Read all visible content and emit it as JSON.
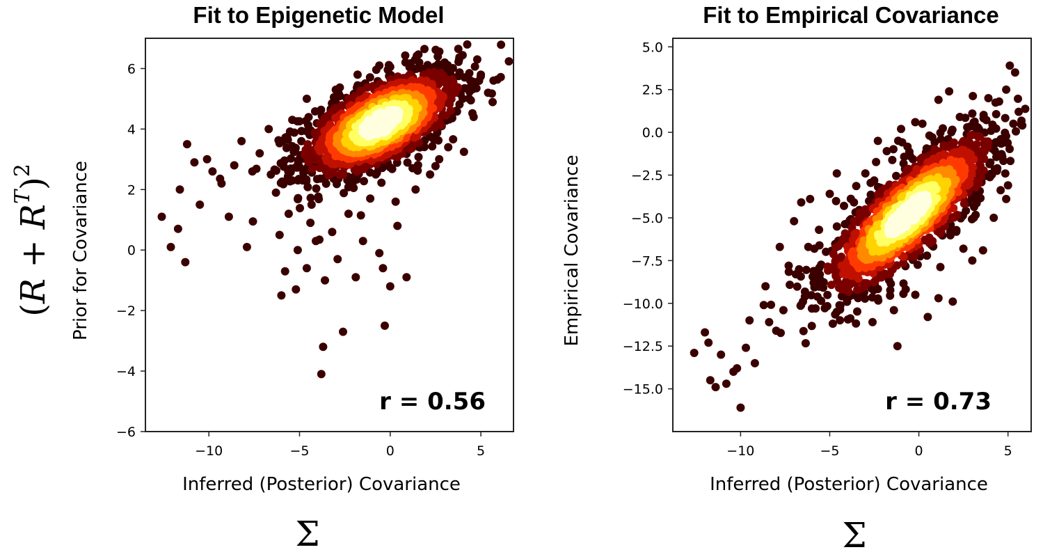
{
  "figure": {
    "left_math": {
      "open": "(",
      "R1": "R",
      "plus": " + ",
      "R2": "R",
      "sup_T": "T",
      "close": ")",
      "sup_2": "2"
    },
    "sigma_symbol": "Σ"
  },
  "chart_data": [
    {
      "type": "scatter",
      "title": "Fit to Epigenetic Model",
      "xlabel": "Inferred (Posterior) Covariance",
      "ylabel": "Prior for Covariance",
      "xlim": [
        -13.5,
        6.8
      ],
      "ylim": [
        -6,
        7
      ],
      "xticks": [
        -10,
        -5,
        0,
        5
      ],
      "xtick_labels": [
        "−10",
        "−5",
        "0",
        "5"
      ],
      "yticks": [
        -6,
        -4,
        -2,
        0,
        2,
        4,
        6
      ],
      "ytick_labels": [
        "−6",
        "−4",
        "−2",
        "0",
        "2",
        "4",
        "6"
      ],
      "annotation": "r = 0.56",
      "colormap": "hot (density)",
      "colors": [
        "#3a0000",
        "#7a0000",
        "#c01000",
        "#ff3a00",
        "#ff8a00",
        "#ffd200",
        "#ffff66",
        "#ffffe0"
      ],
      "density_core": {
        "center": [
          -0.5,
          4.2
        ],
        "sd_x": 2.2,
        "sd_y": 0.9,
        "correlation": 0.6,
        "n_points": 1500
      },
      "outliers": [
        [
          -12.6,
          1.1
        ],
        [
          -12.1,
          0.1
        ],
        [
          -11.3,
          -0.4
        ],
        [
          -11.7,
          0.7
        ],
        [
          -11.6,
          2.0
        ],
        [
          -11.2,
          3.5
        ],
        [
          -10.8,
          2.9
        ],
        [
          -10.5,
          1.5
        ],
        [
          -10.1,
          3.0
        ],
        [
          -9.8,
          2.6
        ],
        [
          -9.3,
          2.2
        ],
        [
          -8.9,
          1.1
        ],
        [
          -8.6,
          2.8
        ],
        [
          -8.2,
          3.6
        ],
        [
          -7.9,
          0.1
        ],
        [
          -7.6,
          2.6
        ],
        [
          -7.2,
          3.2
        ],
        [
          -6.7,
          4.0
        ],
        [
          -6.3,
          1.9
        ],
        [
          -6.1,
          0.5
        ],
        [
          -5.8,
          -0.7
        ],
        [
          -5.6,
          1.2
        ],
        [
          -5.4,
          2.3
        ],
        [
          -5.1,
          0.0
        ],
        [
          -6.0,
          -1.5
        ],
        [
          -5.2,
          -1.3
        ],
        [
          -4.6,
          -0.6
        ],
        [
          -4.4,
          0.9
        ],
        [
          -4.1,
          0.3
        ],
        [
          -3.8,
          -4.1
        ],
        [
          -3.7,
          -3.2
        ],
        [
          -3.6,
          -1.0
        ],
        [
          -3.2,
          0.6
        ],
        [
          -2.6,
          -2.7
        ],
        [
          -2.9,
          -0.3
        ],
        [
          -2.3,
          1.2
        ],
        [
          -1.9,
          -0.9
        ],
        [
          -1.5,
          0.3
        ],
        [
          -1.1,
          1.7
        ],
        [
          -0.6,
          -0.1
        ],
        [
          -0.3,
          -2.5
        ],
        [
          -0.4,
          -0.6
        ],
        [
          0.0,
          -1.2
        ],
        [
          0.4,
          0.8
        ],
        [
          0.9,
          -0.9
        ],
        [
          0.3,
          1.6
        ],
        [
          1.4,
          2.0
        ],
        [
          2.2,
          2.5
        ],
        [
          2.7,
          3.0
        ],
        [
          3.2,
          3.4
        ],
        [
          4.0,
          5.0
        ],
        [
          4.6,
          4.4
        ],
        [
          5.0,
          5.8
        ],
        [
          5.4,
          5.2
        ],
        [
          5.7,
          5.6
        ],
        [
          4.8,
          6.3
        ],
        [
          3.8,
          6.3
        ],
        [
          3.0,
          6.2
        ],
        [
          1.6,
          6.2
        ],
        [
          -0.6,
          6.1
        ],
        [
          -1.8,
          5.8
        ],
        [
          -3.0,
          5.3
        ],
        [
          -4.6,
          5.0
        ],
        [
          -5.4,
          4.3
        ],
        [
          -4.9,
          3.6
        ],
        [
          -4.2,
          2.9
        ]
      ]
    },
    {
      "type": "scatter",
      "title": "Fit to Empirical Covariance",
      "xlabel": "Inferred (Posterior) Covariance",
      "ylabel": "Empirical Covariance",
      "xlim": [
        -13.8,
        6.3
      ],
      "ylim": [
        -17.5,
        5.5
      ],
      "xticks": [
        -10,
        -5,
        0,
        5
      ],
      "xtick_labels": [
        "−10",
        "−5",
        "0",
        "5"
      ],
      "yticks": [
        -15,
        -12.5,
        -10,
        -7.5,
        -5,
        -2.5,
        0,
        2.5,
        5
      ],
      "ytick_labels": [
        "−15.0",
        "−12.5",
        "−10.0",
        "−7.5",
        "−5.0",
        "−2.5",
        "0.0",
        "2.5",
        "5.0"
      ],
      "annotation": "r = 0.73",
      "colormap": "hot (density)",
      "colors": [
        "#3a0000",
        "#7a0000",
        "#c01000",
        "#ff3a00",
        "#ff8a00",
        "#ffd200",
        "#ffff66",
        "#ffffe0"
      ],
      "density_core": {
        "center": [
          -0.6,
          -4.8
        ],
        "sd_x": 2.4,
        "sd_y": 2.4,
        "correlation": 0.8,
        "n_points": 1500
      },
      "outliers": [
        [
          -12.6,
          -12.9
        ],
        [
          -12.0,
          -11.7
        ],
        [
          -11.8,
          -12.3
        ],
        [
          -11.7,
          -14.5
        ],
        [
          -11.4,
          -14.9
        ],
        [
          -11.1,
          -13.0
        ],
        [
          -10.8,
          -14.7
        ],
        [
          -10.4,
          -14.0
        ],
        [
          -10.2,
          -13.8
        ],
        [
          -10.0,
          -16.1
        ],
        [
          -9.7,
          -12.6
        ],
        [
          -9.5,
          -11.0
        ],
        [
          -9.2,
          -13.5
        ],
        [
          -8.7,
          -10.1
        ],
        [
          -8.6,
          -9.0
        ],
        [
          -8.4,
          -11.1
        ],
        [
          -8.0,
          -11.6
        ],
        [
          -7.6,
          -10.4
        ],
        [
          -7.8,
          -6.7
        ],
        [
          -7.3,
          -7.8
        ],
        [
          -7.0,
          -5.2
        ],
        [
          -6.6,
          -4.1
        ],
        [
          -6.1,
          -3.9
        ],
        [
          -5.6,
          -5.7
        ],
        [
          -5.0,
          -3.6
        ],
        [
          -4.6,
          -2.4
        ],
        [
          -4.4,
          -8.9
        ],
        [
          -4.6,
          -10.5
        ],
        [
          -3.9,
          -9.6
        ],
        [
          -3.3,
          -9.5
        ],
        [
          -2.6,
          -11.1
        ],
        [
          -2.3,
          -0.5
        ],
        [
          -1.4,
          -10.4
        ],
        [
          -1.2,
          -12.5
        ],
        [
          -0.2,
          -9.5
        ],
        [
          0.5,
          -10.8
        ],
        [
          1.1,
          -9.7
        ],
        [
          1.9,
          -9.9
        ],
        [
          2.5,
          -6.8
        ],
        [
          3.0,
          -7.5
        ],
        [
          3.6,
          -6.9
        ],
        [
          4.2,
          -5.0
        ],
        [
          5.0,
          -3.1
        ],
        [
          4.9,
          -3.9
        ],
        [
          4.4,
          -2.1
        ],
        [
          4.6,
          -0.4
        ],
        [
          5.3,
          0.5
        ],
        [
          5.6,
          1.2
        ],
        [
          5.8,
          0.4
        ],
        [
          5.1,
          3.9
        ],
        [
          5.4,
          3.5
        ],
        [
          4.9,
          2.5
        ],
        [
          4.5,
          1.8
        ],
        [
          3.9,
          2.0
        ],
        [
          3.0,
          1.1
        ],
        [
          2.3,
          0.9
        ],
        [
          1.7,
          2.4
        ],
        [
          1.1,
          1.9
        ],
        [
          0.2,
          0.5
        ],
        [
          -1.0,
          0.2
        ],
        [
          -1.8,
          -1.1
        ],
        [
          -3.0,
          -2.4
        ],
        [
          -4.2,
          -4.3
        ],
        [
          -6.2,
          -6.7
        ],
        [
          -6.9,
          -8.3
        ],
        [
          -5.9,
          -8.8
        ]
      ]
    }
  ]
}
